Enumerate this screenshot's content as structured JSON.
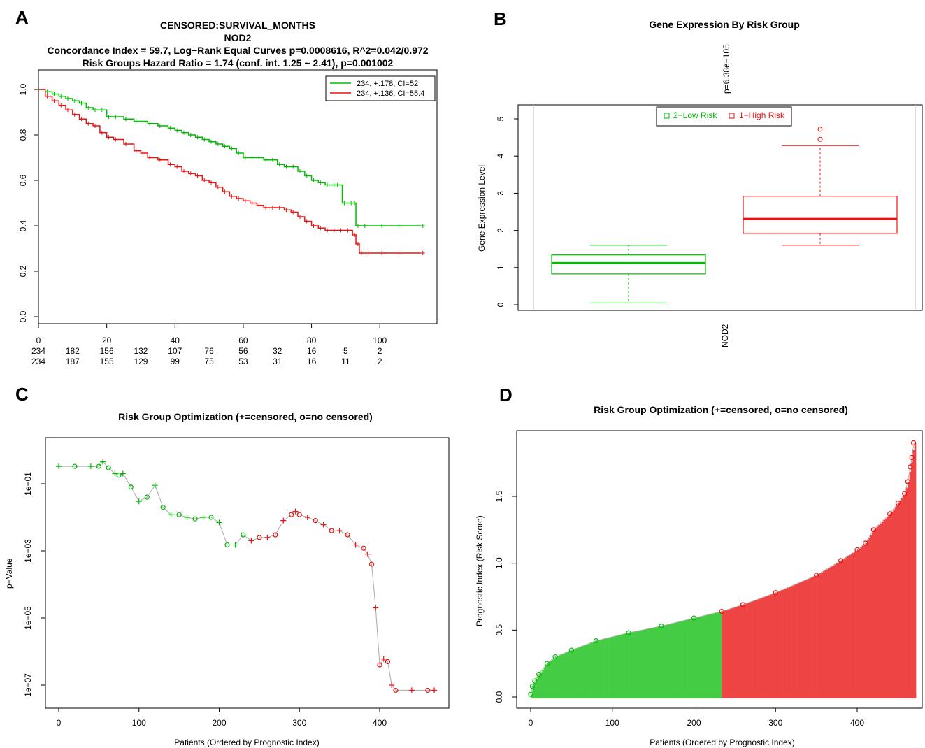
{
  "colors": {
    "low": "#00bb00",
    "high": "#ee1111",
    "bar_low": "#44cc44",
    "bar_high": "#ee4444",
    "line": "#aaaaaa"
  },
  "panels": {
    "A": {
      "letter": "A",
      "title_lines": [
        "CENSORED:SURVIVAL_MONTHS",
        "NOD2",
        "Concordance Index = 59.7, Log−Rank Equal Curves p=0.0008616, R^2=0.042/0.972",
        "Risk Groups Hazard Ratio = 1.74 (conf. int. 1.25 ~ 2.41), p=0.001002"
      ],
      "legend": [
        "234, +:178, CI=52",
        "234, +:136, CI=55.4"
      ],
      "x_ticks": [
        "0",
        "20",
        "40",
        "60",
        "80",
        "100"
      ],
      "y_ticks": [
        "0.0",
        "0.2",
        "0.4",
        "0.6",
        "0.8",
        "1.0"
      ],
      "risk_table": {
        "low": [
          "234",
          "182",
          "156",
          "132",
          "107",
          "76",
          "56",
          "32",
          "16",
          "5",
          "2"
        ],
        "high": [
          "234",
          "187",
          "155",
          "129",
          "99",
          "75",
          "53",
          "31",
          "16",
          "11",
          "2"
        ]
      }
    },
    "B": {
      "letter": "B",
      "title": "Gene Expression By Risk Group",
      "pvalue": "p=6.38e−105",
      "ylabel": "Gene Expression Level",
      "xlabel": "NOD2",
      "legend": [
        "2−Low Risk",
        "1−High Risk"
      ],
      "y_ticks": [
        "0",
        "1",
        "2",
        "3",
        "4",
        "5"
      ]
    },
    "C": {
      "letter": "C",
      "title": "Risk Group Optimization (+=censored, o=no censored)",
      "ylabel": "p−Value",
      "xlabel": "Patients (Ordered by Prognostic Index)",
      "x_ticks": [
        "0",
        "100",
        "200",
        "300",
        "400"
      ],
      "y_ticks": [
        "1e−01",
        "1e−03",
        "1e−05",
        "1e−07"
      ]
    },
    "D": {
      "letter": "D",
      "title": "Risk Group Optimization (+=censored, o=no censored)",
      "ylabel": "Prognostic Index (Risk Score)",
      "xlabel": "Patients (Ordered by Prognostic Index)",
      "x_ticks": [
        "0",
        "100",
        "200",
        "300",
        "400"
      ],
      "y_ticks": [
        "0.0",
        "0.5",
        "1.0",
        "1.5"
      ]
    }
  },
  "chart_data": [
    {
      "type": "line",
      "panel": "A",
      "xlim": [
        0,
        115
      ],
      "ylim": [
        0,
        1
      ],
      "series": [
        {
          "name": "234, +:178, CI=52",
          "color": "green",
          "x": [
            0,
            2,
            4,
            6,
            8,
            10,
            12,
            14,
            16,
            18,
            20,
            22,
            25,
            28,
            30,
            32,
            35,
            38,
            40,
            42,
            44,
            46,
            48,
            50,
            52,
            54,
            56,
            58,
            60,
            62,
            64,
            66,
            68,
            70,
            72,
            74,
            76,
            78,
            80,
            82,
            84,
            86,
            87,
            89,
            91,
            92,
            93,
            95,
            100,
            105,
            112
          ],
          "y": [
            1.0,
            0.99,
            0.98,
            0.97,
            0.96,
            0.95,
            0.94,
            0.92,
            0.91,
            0.91,
            0.88,
            0.88,
            0.87,
            0.86,
            0.86,
            0.85,
            0.84,
            0.83,
            0.82,
            0.81,
            0.8,
            0.79,
            0.78,
            0.77,
            0.76,
            0.75,
            0.74,
            0.72,
            0.7,
            0.7,
            0.7,
            0.69,
            0.69,
            0.67,
            0.66,
            0.66,
            0.64,
            0.62,
            0.6,
            0.59,
            0.58,
            0.58,
            0.58,
            0.5,
            0.5,
            0.5,
            0.4,
            0.4,
            0.4,
            0.4,
            0.4
          ]
        },
        {
          "name": "234, +:136, CI=55.4",
          "color": "red",
          "x": [
            0,
            2,
            4,
            6,
            8,
            10,
            12,
            14,
            16,
            18,
            20,
            22,
            25,
            28,
            30,
            32,
            35,
            38,
            40,
            42,
            44,
            46,
            48,
            50,
            52,
            54,
            56,
            58,
            60,
            62,
            64,
            66,
            68,
            70,
            72,
            74,
            76,
            78,
            80,
            82,
            84,
            86,
            88,
            90,
            92,
            93,
            94,
            96,
            100,
            105,
            112
          ],
          "y": [
            1.0,
            0.97,
            0.95,
            0.93,
            0.91,
            0.89,
            0.87,
            0.85,
            0.84,
            0.81,
            0.79,
            0.78,
            0.76,
            0.73,
            0.72,
            0.7,
            0.69,
            0.67,
            0.66,
            0.64,
            0.63,
            0.62,
            0.6,
            0.59,
            0.57,
            0.55,
            0.53,
            0.52,
            0.51,
            0.5,
            0.49,
            0.48,
            0.48,
            0.48,
            0.47,
            0.46,
            0.44,
            0.42,
            0.4,
            0.39,
            0.38,
            0.38,
            0.38,
            0.38,
            0.36,
            0.32,
            0.28,
            0.28,
            0.28,
            0.28,
            0.28
          ]
        }
      ]
    },
    {
      "type": "box",
      "panel": "B",
      "ylim": [
        0,
        5
      ],
      "boxes": [
        {
          "name": "2−Low Risk",
          "color": "green",
          "min": 0.05,
          "q1": 0.83,
          "median": 1.12,
          "q3": 1.34,
          "max": 1.6,
          "outliers": []
        },
        {
          "name": "1−High Risk",
          "color": "red",
          "min": 1.6,
          "q1": 1.92,
          "median": 2.31,
          "q3": 2.92,
          "max": 4.28,
          "outliers": [
            4.45,
            4.72
          ]
        }
      ]
    },
    {
      "type": "scatter",
      "panel": "C",
      "xlim": [
        0,
        470
      ],
      "ylog": true,
      "split": 234,
      "x": [
        0,
        20,
        40,
        50,
        55,
        62,
        70,
        75,
        80,
        90,
        100,
        110,
        120,
        130,
        140,
        150,
        160,
        170,
        180,
        190,
        200,
        210,
        220,
        230,
        240,
        250,
        260,
        270,
        280,
        290,
        295,
        300,
        310,
        320,
        330,
        340,
        350,
        360,
        370,
        380,
        385,
        390,
        395,
        400,
        405,
        410,
        415,
        420,
        440,
        460,
        468
      ],
      "y": [
        0.33,
        0.33,
        0.33,
        0.33,
        0.45,
        0.3,
        0.2,
        0.18,
        0.2,
        0.08,
        0.03,
        0.04,
        0.09,
        0.02,
        0.012,
        0.012,
        0.01,
        0.009,
        0.01,
        0.01,
        0.007,
        0.0015,
        0.0015,
        0.003,
        0.002,
        0.0025,
        0.0025,
        0.003,
        0.008,
        0.012,
        0.015,
        0.012,
        0.01,
        0.008,
        0.006,
        0.004,
        0.004,
        0.003,
        0.0015,
        0.0012,
        0.0008,
        0.0004,
        2e-05,
        4e-07,
        6e-07,
        5e-07,
        1e-07,
        7e-08,
        7e-08,
        7e-08,
        7e-08
      ]
    },
    {
      "type": "bar",
      "panel": "D",
      "xlim": [
        0,
        470
      ],
      "ylim": [
        0,
        1.95
      ],
      "split": 234,
      "x": [
        0,
        2,
        5,
        10,
        20,
        30,
        50,
        80,
        120,
        160,
        200,
        234,
        260,
        300,
        350,
        380,
        400,
        410,
        420,
        440,
        450,
        458,
        462,
        465,
        467,
        469
      ],
      "y": [
        0.02,
        0.08,
        0.12,
        0.17,
        0.25,
        0.3,
        0.35,
        0.42,
        0.48,
        0.53,
        0.59,
        0.64,
        0.69,
        0.78,
        0.91,
        1.02,
        1.1,
        1.15,
        1.25,
        1.37,
        1.45,
        1.52,
        1.61,
        1.72,
        1.79,
        1.9
      ]
    }
  ]
}
